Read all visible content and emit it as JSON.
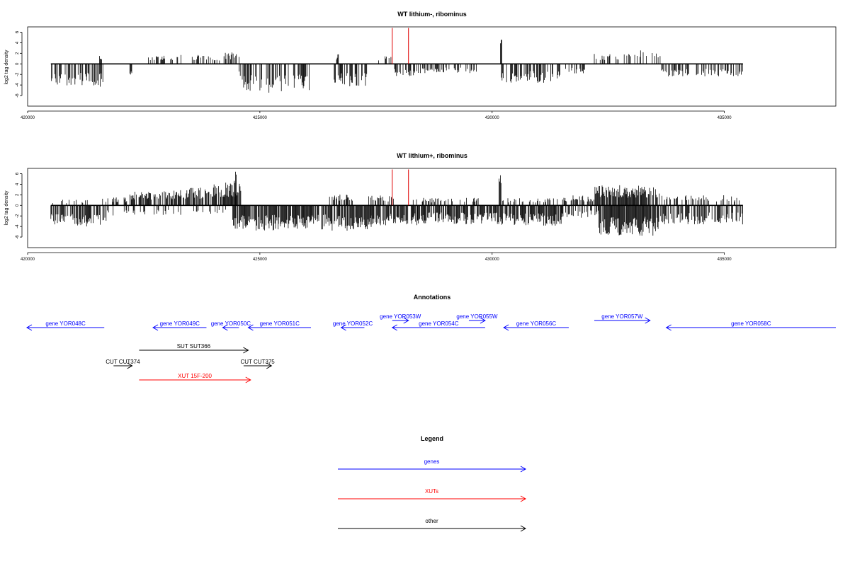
{
  "chart_data": [
    {
      "type": "bar",
      "title": "WT lithium-, ribominus",
      "ylabel": "log2 tag density",
      "xlim": [
        420000,
        437400
      ],
      "ylim": [
        -8,
        7
      ],
      "x_ticks": [
        420000,
        425000,
        430000,
        435000
      ],
      "y_ticks": [
        -6,
        -4,
        -2,
        0,
        2,
        4,
        6
      ],
      "highlight_x": [
        427850,
        428200
      ],
      "highlight_color": "#e00000",
      "series_color": "#000000",
      "pos_spans": [
        [
          421550,
          421600,
          1.4,
          0.35
        ],
        [
          422600,
          423300,
          1.4,
          0.35
        ],
        [
          423500,
          424200,
          1.4,
          0.35
        ],
        [
          424200,
          424550,
          1.8,
          0.35
        ],
        [
          426650,
          426700,
          1.5,
          0.3
        ],
        [
          427500,
          427850,
          1.2,
          0.3
        ],
        [
          430180,
          430210,
          5.0,
          0.1
        ],
        [
          432200,
          433000,
          1.6,
          0.35
        ],
        [
          433000,
          433650,
          2.2,
          0.35
        ]
      ],
      "neg_spans": [
        [
          420500,
          421650,
          3.6,
          0.55
        ],
        [
          422200,
          422250,
          2.0,
          0.1
        ],
        [
          424550,
          424650,
          3.0,
          0.3
        ],
        [
          424650,
          425500,
          4.6,
          0.6
        ],
        [
          425500,
          426100,
          4.2,
          0.6
        ],
        [
          426600,
          427350,
          3.6,
          0.5
        ],
        [
          427900,
          428400,
          2.0,
          0.45
        ],
        [
          428400,
          429700,
          1.5,
          0.4
        ],
        [
          430200,
          431500,
          3.0,
          0.55
        ],
        [
          431500,
          432000,
          1.6,
          0.3
        ],
        [
          433600,
          435400,
          2.0,
          0.45
        ]
      ]
    },
    {
      "type": "bar",
      "title": "WT lithium+, ribominus",
      "ylabel": "log2 tag density",
      "xlim": [
        420000,
        437400
      ],
      "ylim": [
        -8,
        7
      ],
      "x_ticks": [
        420000,
        425000,
        430000,
        435000
      ],
      "y_ticks": [
        -6,
        -4,
        -2,
        0,
        2,
        4,
        6
      ],
      "highlight_x": [
        427850,
        428200
      ],
      "highlight_color": "#e00000",
      "series_color": "#000000",
      "pos_spans": [
        [
          420500,
          421500,
          0.9,
          0.15
        ],
        [
          421600,
          422200,
          1.3,
          0.3
        ],
        [
          422200,
          423400,
          2.4,
          0.7
        ],
        [
          423400,
          424000,
          2.8,
          0.7
        ],
        [
          424000,
          424600,
          3.6,
          0.85
        ],
        [
          424450,
          424500,
          6.2,
          0.05
        ],
        [
          426500,
          427000,
          1.8,
          0.6
        ],
        [
          427300,
          427900,
          1.6,
          0.5
        ],
        [
          428300,
          429700,
          1.2,
          0.35
        ],
        [
          430150,
          430200,
          5.5,
          0.06
        ],
        [
          430200,
          431600,
          1.2,
          0.3
        ],
        [
          431700,
          432200,
          1.6,
          0.5
        ],
        [
          432200,
          433600,
          3.2,
          0.85
        ],
        [
          433600,
          435400,
          1.6,
          0.35
        ]
      ],
      "neg_spans": [
        [
          420500,
          421700,
          3.4,
          0.7
        ],
        [
          421700,
          424400,
          1.6,
          0.25
        ],
        [
          424400,
          425400,
          4.0,
          0.85
        ],
        [
          425400,
          426500,
          3.8,
          0.8
        ],
        [
          426500,
          427400,
          4.0,
          0.85
        ],
        [
          427400,
          428400,
          3.2,
          0.8
        ],
        [
          428400,
          430100,
          3.0,
          0.8
        ],
        [
          430100,
          431500,
          3.2,
          0.8
        ],
        [
          431500,
          432300,
          2.0,
          0.5
        ],
        [
          432300,
          433600,
          4.8,
          0.95
        ],
        [
          433600,
          435400,
          3.0,
          0.6
        ]
      ]
    }
  ],
  "annotations": {
    "title": "Annotations",
    "xlim": [
      420000,
      437400
    ],
    "items": [
      {
        "label": "gene YOR048C",
        "start": 419000,
        "end": 421650,
        "strand": "-",
        "color": "#0000ff",
        "row": 0
      },
      {
        "label": "gene YOR049C",
        "start": 422700,
        "end": 423850,
        "strand": "-",
        "color": "#0000ff",
        "row": 0
      },
      {
        "label": "gene YOR050C",
        "start": 424200,
        "end": 424550,
        "strand": "-",
        "color": "#0000ff",
        "row": 0
      },
      {
        "label": "gene YOR051C",
        "start": 424750,
        "end": 426100,
        "strand": "-",
        "color": "#0000ff",
        "row": 0
      },
      {
        "label": "gene YOR052C",
        "start": 426750,
        "end": 427250,
        "strand": "-",
        "color": "#0000ff",
        "row": 0
      },
      {
        "label": "gene YOR053W",
        "start": 427850,
        "end": 428200,
        "strand": "+",
        "color": "#0000ff",
        "row": 1
      },
      {
        "label": "gene YOR054C",
        "start": 427850,
        "end": 429850,
        "strand": "-",
        "color": "#0000ff",
        "row": 0
      },
      {
        "label": "gene YOR055W",
        "start": 429500,
        "end": 429850,
        "strand": "+",
        "color": "#0000ff",
        "row": 1
      },
      {
        "label": "gene YOR056C",
        "start": 430250,
        "end": 431650,
        "strand": "-",
        "color": "#0000ff",
        "row": 0
      },
      {
        "label": "gene YOR057W",
        "start": 432200,
        "end": 433400,
        "strand": "+",
        "color": "#0000ff",
        "row": 1
      },
      {
        "label": "gene YOR058C",
        "start": 433750,
        "end": 437400,
        "strand": "-",
        "color": "#0000ff",
        "row": 0
      },
      {
        "label": "SUT SUT366",
        "start": 422400,
        "end": 424750,
        "strand": "+",
        "color": "#000000",
        "row": 2
      },
      {
        "label": "CUT CUT374",
        "start": 421850,
        "end": 422250,
        "strand": "+",
        "color": "#000000",
        "row": 3
      },
      {
        "label": "CUT CUT375",
        "start": 424650,
        "end": 425250,
        "strand": "+",
        "color": "#000000",
        "row": 3
      },
      {
        "label": "XUT 15F-200",
        "start": 422400,
        "end": 424800,
        "strand": "+",
        "color": "#ff0000",
        "row": 4
      }
    ]
  },
  "legend": {
    "title": "Legend",
    "items": [
      {
        "label": "genes",
        "color": "#0000ff"
      },
      {
        "label": "XUTs",
        "color": "#ff0000"
      },
      {
        "label": "other",
        "color": "#000000"
      }
    ]
  }
}
